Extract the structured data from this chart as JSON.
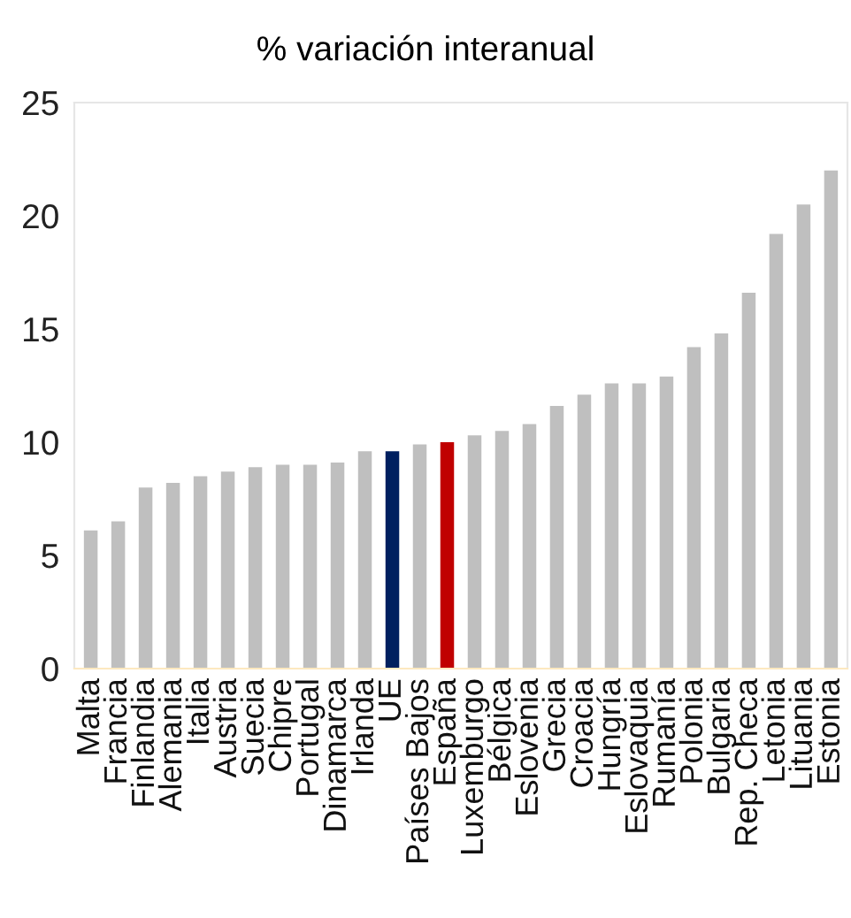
{
  "chart_data": {
    "type": "bar",
    "title": "% variación interanual",
    "categories": [
      "Malta",
      "Francia",
      "Finlandia",
      "Alemania",
      "Italia",
      "Austria",
      "Suecia",
      "Chipre",
      "Portugal",
      "Dinamarca",
      "Irlanda",
      "UE",
      "Países Bajos",
      "España",
      "Luxemburgo",
      "Bélgica",
      "Eslovenia",
      "Grecia",
      "Croacia",
      "Hungría",
      "Eslovaquia",
      "Rumanía",
      "Polonia",
      "Bulgaria",
      "Rep. Checa",
      "Letonia",
      "Lituania",
      "Estonia"
    ],
    "values": [
      6.1,
      6.5,
      8.0,
      8.2,
      8.5,
      8.7,
      8.9,
      9.0,
      9.0,
      9.1,
      9.6,
      9.6,
      9.9,
      10.0,
      10.3,
      10.5,
      10.8,
      11.6,
      12.1,
      12.6,
      12.6,
      12.9,
      14.2,
      14.8,
      16.6,
      19.2,
      20.5,
      22.0
    ],
    "colors": [
      "#bfbfbf",
      "#bfbfbf",
      "#bfbfbf",
      "#bfbfbf",
      "#bfbfbf",
      "#bfbfbf",
      "#bfbfbf",
      "#bfbfbf",
      "#bfbfbf",
      "#bfbfbf",
      "#bfbfbf",
      "#002060",
      "#bfbfbf",
      "#c00000",
      "#bfbfbf",
      "#bfbfbf",
      "#bfbfbf",
      "#bfbfbf",
      "#bfbfbf",
      "#bfbfbf",
      "#bfbfbf",
      "#bfbfbf",
      "#bfbfbf",
      "#bfbfbf",
      "#bfbfbf",
      "#bfbfbf",
      "#bfbfbf",
      "#bfbfbf"
    ],
    "ylim": [
      0,
      25
    ],
    "yticks": [
      0,
      5,
      10,
      15,
      20,
      25
    ],
    "grid": false,
    "legend": false
  }
}
